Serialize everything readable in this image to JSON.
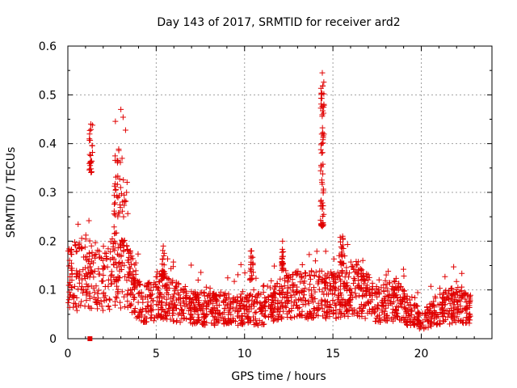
{
  "chart_data": {
    "type": "scatter",
    "title": "Day 143 of 2017, SRMTID for receiver ard2",
    "xlabel": "GPS time / hours",
    "ylabel": "SRMTID / TECUs",
    "xlim": [
      0,
      24
    ],
    "ylim": [
      0,
      0.6
    ],
    "xticks": [
      "0",
      "5",
      "10",
      "15",
      "20"
    ],
    "xtick_values": [
      0,
      5,
      10,
      15,
      20
    ],
    "yticks": [
      "0",
      "0.1",
      "0.2",
      "0.3",
      "0.4",
      "0.5",
      "0.6"
    ],
    "ytick_values": [
      0,
      0.1,
      0.2,
      0.3,
      0.4,
      0.5,
      0.6
    ],
    "grid": true,
    "marker": "plus",
    "marker_color": "#e00000",
    "x_span": [
      0,
      22.8
    ],
    "baseline": [
      [
        0,
        0.12
      ],
      [
        0.7,
        0.13
      ],
      [
        1.0,
        0.14
      ],
      [
        2.0,
        0.11
      ],
      [
        2.7,
        0.15
      ],
      [
        3.5,
        0.12
      ],
      [
        4.2,
        0.07
      ],
      [
        5.3,
        0.09
      ],
      [
        6.5,
        0.07
      ],
      [
        8.0,
        0.06
      ],
      [
        9.5,
        0.06
      ],
      [
        11.0,
        0.06
      ],
      [
        12.0,
        0.08
      ],
      [
        13.0,
        0.09
      ],
      [
        14.0,
        0.09
      ],
      [
        15.0,
        0.09
      ],
      [
        16.5,
        0.1
      ],
      [
        17.5,
        0.07
      ],
      [
        18.5,
        0.08
      ],
      [
        19.5,
        0.05
      ],
      [
        20.0,
        0.04
      ],
      [
        21.0,
        0.06
      ],
      [
        22.0,
        0.07
      ],
      [
        22.8,
        0.06
      ]
    ],
    "spikes": [
      {
        "x": [
          1.2,
          1.4
        ],
        "y": [
          0.34,
          0.44
        ]
      },
      {
        "x": [
          2.6,
          3.4
        ],
        "y": [
          0.25,
          0.47
        ]
      },
      {
        "x": [
          14.3,
          14.5
        ],
        "y": [
          0.23,
          0.545
        ]
      },
      {
        "x": [
          15.4,
          15.7
        ],
        "y": [
          0.15,
          0.21
        ]
      },
      {
        "x": [
          12.1,
          12.2
        ],
        "y": [
          0.14,
          0.2
        ]
      },
      {
        "x": [
          10.3,
          10.5
        ],
        "y": [
          0.12,
          0.18
        ]
      },
      {
        "x": [
          5.3,
          5.5
        ],
        "y": [
          0.12,
          0.19
        ]
      }
    ],
    "special_point": {
      "x": 1.25,
      "y": 0.0,
      "marker": "square"
    }
  }
}
